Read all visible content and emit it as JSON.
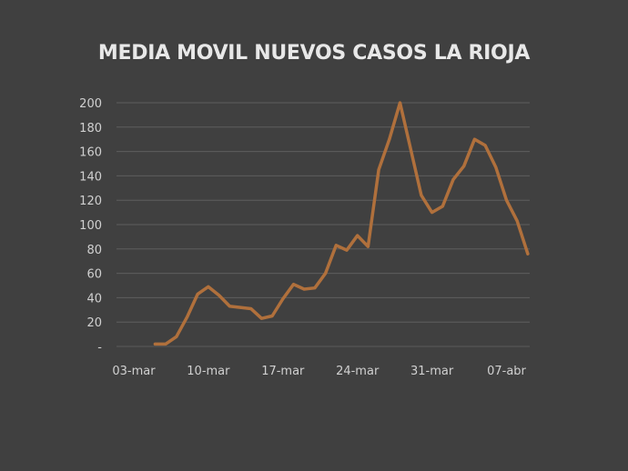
{
  "chart_data": {
    "type": "line",
    "title": "MEDIA MOVIL NUEVOS CASOS LA RIOJA",
    "xlabel": "",
    "ylabel": "",
    "ylim": [
      0,
      200
    ],
    "yticks": [
      "-",
      "20",
      "40",
      "60",
      "80",
      "100",
      "120",
      "140",
      "160",
      "180",
      "200"
    ],
    "xticks": [
      "03-mar",
      "10-mar",
      "17-mar",
      "24-mar",
      "31-mar",
      "07-abr"
    ],
    "grid": true,
    "line_color": "#b0703c",
    "x": [
      "05-mar",
      "06-mar",
      "07-mar",
      "08-mar",
      "09-mar",
      "10-mar",
      "11-mar",
      "12-mar",
      "13-mar",
      "14-mar",
      "15-mar",
      "16-mar",
      "17-mar",
      "18-mar",
      "19-mar",
      "20-mar",
      "21-mar",
      "22-mar",
      "23-mar",
      "24-mar",
      "25-mar",
      "26-mar",
      "27-mar",
      "28-mar",
      "29-mar",
      "30-mar",
      "31-mar",
      "01-abr",
      "02-abr",
      "03-abr",
      "04-abr",
      "05-abr",
      "06-abr",
      "07-abr",
      "08-abr",
      "09-abr"
    ],
    "values": [
      2,
      2,
      8,
      24,
      43,
      49,
      42,
      33,
      32,
      31,
      23,
      25,
      39,
      51,
      47,
      48,
      60,
      83,
      79,
      91,
      82,
      145,
      170,
      200,
      162,
      124,
      110,
      115,
      137,
      148,
      170,
      165,
      147,
      120,
      103,
      76
    ]
  }
}
